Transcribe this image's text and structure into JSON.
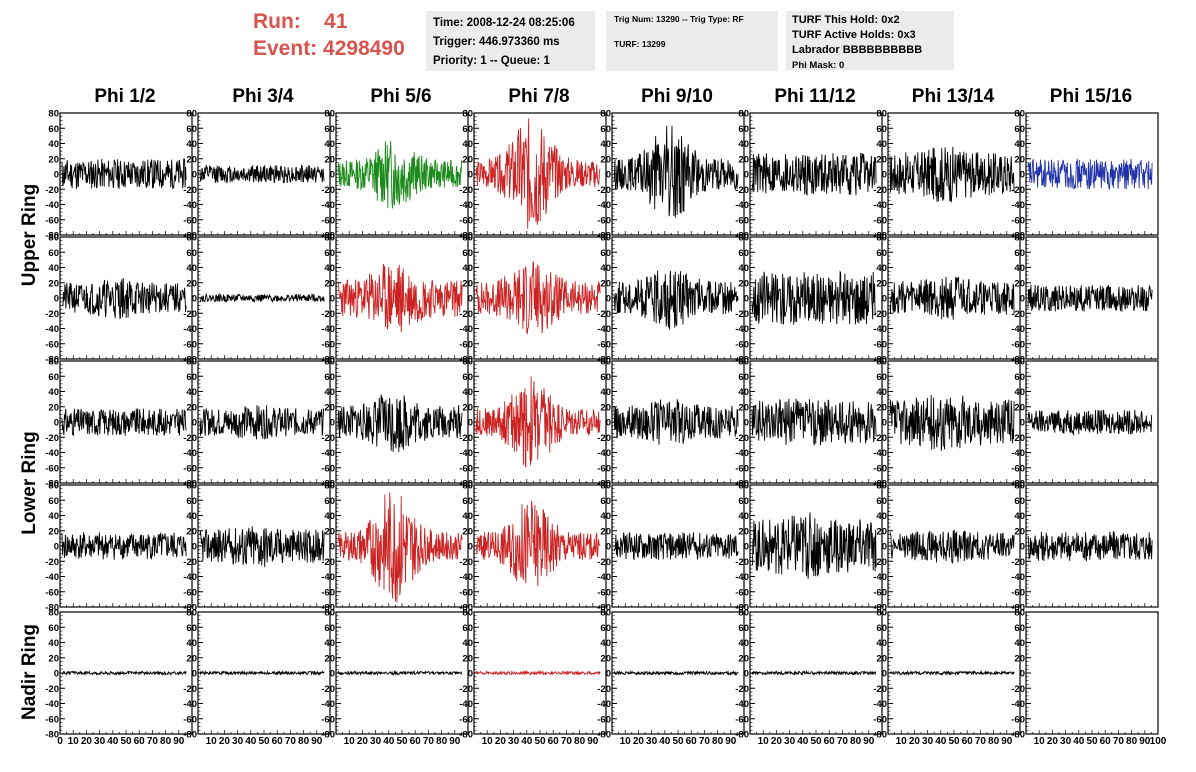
{
  "header": {
    "run_label": "Run:",
    "run_value": "41",
    "event_label": "Event:",
    "event_value": "4298490",
    "time": "Time: 2008-12-24 08:25:06",
    "trigger": "Trigger: 446.973360 ms",
    "priority": "Priority: 1 -- Queue: 1",
    "trig_num": "Trig Num: 13290 -- Trig Type: RF",
    "turf": "TURF: 13299",
    "turf_this_hold": "TURF This Hold: 0x2",
    "turf_active_holds": "TURF Active Holds: 0x3",
    "labrador": "Labrador BBBBBBBBBB",
    "phi_mask": "Phi Mask: 0"
  },
  "chart_data": {
    "type": "line",
    "columns": [
      "Phi 1/2",
      "Phi 3/4",
      "Phi 5/6",
      "Phi 7/8",
      "Phi 9/10",
      "Phi 11/12",
      "Phi 13/14",
      "Phi 15/16"
    ],
    "row_groups": [
      {
        "label": "Upper Ring",
        "rows": [
          0,
          1
        ]
      },
      {
        "label": "Lower Ring",
        "rows": [
          2,
          3
        ]
      },
      {
        "label": "Nadir Ring",
        "rows": [
          4
        ]
      }
    ],
    "ylim": [
      -80,
      80
    ],
    "yticks": [
      "80",
      "60",
      "40",
      "20",
      "0",
      "-20",
      "-40",
      "-60",
      "-80"
    ],
    "xlim": [
      0,
      100
    ],
    "xticks_first": [
      "0",
      "10",
      "20",
      "30",
      "40",
      "50",
      "60",
      "70",
      "80",
      "90"
    ],
    "xticks_mid": [
      "10",
      "20",
      "30",
      "40",
      "50",
      "60",
      "70",
      "80",
      "90"
    ],
    "xticks_last": [
      "10",
      "20",
      "30",
      "40",
      "50",
      "60",
      "70",
      "80",
      "90",
      "100"
    ],
    "colors": {
      "default": "#000000",
      "green": "#1a8a1a",
      "red": "#cc2222",
      "blue": "#2233aa"
    },
    "traces": [
      [
        {
          "color": "default",
          "amp": 20,
          "burst": 0,
          "seed": 11,
          "length": 100
        },
        {
          "color": "default",
          "amp": 12,
          "burst": 0,
          "seed": 12,
          "length": 100
        },
        {
          "color": "green",
          "amp": 18,
          "burst": 30,
          "seed": 13,
          "length": 100
        },
        {
          "color": "red",
          "amp": 18,
          "burst": 60,
          "seed": 14,
          "length": 100
        },
        {
          "color": "default",
          "amp": 20,
          "burst": 45,
          "seed": 15,
          "length": 100
        },
        {
          "color": "default",
          "amp": 28,
          "burst": 0,
          "seed": 16,
          "length": 100
        },
        {
          "color": "default",
          "amp": 28,
          "burst": 10,
          "seed": 17,
          "length": 100
        },
        {
          "color": "blue",
          "amp": 20,
          "burst": 0,
          "seed": 18,
          "length": 100
        }
      ],
      [
        {
          "color": "default",
          "amp": 20,
          "burst": 8,
          "seed": 21,
          "length": 100
        },
        {
          "color": "default",
          "amp": 5,
          "burst": 0,
          "seed": 22,
          "length": 100
        },
        {
          "color": "red",
          "amp": 25,
          "burst": 25,
          "seed": 23,
          "length": 100
        },
        {
          "color": "red",
          "amp": 22,
          "burst": 30,
          "seed": 24,
          "length": 100
        },
        {
          "color": "default",
          "amp": 22,
          "burst": 20,
          "seed": 25,
          "length": 100
        },
        {
          "color": "default",
          "amp": 35,
          "burst": 0,
          "seed": 26,
          "length": 100
        },
        {
          "color": "default",
          "amp": 22,
          "burst": 8,
          "seed": 27,
          "length": 100
        },
        {
          "color": "default",
          "amp": 18,
          "burst": 0,
          "seed": 28,
          "length": 100
        }
      ],
      [
        {
          "color": "default",
          "amp": 18,
          "burst": 0,
          "seed": 31,
          "length": 100
        },
        {
          "color": "default",
          "amp": 18,
          "burst": 5,
          "seed": 32,
          "length": 100
        },
        {
          "color": "default",
          "amp": 22,
          "burst": 20,
          "seed": 33,
          "length": 100
        },
        {
          "color": "red",
          "amp": 18,
          "burst": 45,
          "seed": 34,
          "length": 100
        },
        {
          "color": "default",
          "amp": 22,
          "burst": 10,
          "seed": 35,
          "length": 100
        },
        {
          "color": "default",
          "amp": 28,
          "burst": 5,
          "seed": 36,
          "length": 100
        },
        {
          "color": "default",
          "amp": 30,
          "burst": 10,
          "seed": 37,
          "length": 100
        },
        {
          "color": "default",
          "amp": 16,
          "burst": 0,
          "seed": 38,
          "length": 100
        }
      ],
      [
        {
          "color": "default",
          "amp": 18,
          "burst": 0,
          "seed": 41,
          "length": 100
        },
        {
          "color": "default",
          "amp": 22,
          "burst": 8,
          "seed": 42,
          "length": 100
        },
        {
          "color": "red",
          "amp": 18,
          "burst": 60,
          "seed": 43,
          "length": 100
        },
        {
          "color": "red",
          "amp": 18,
          "burst": 45,
          "seed": 44,
          "length": 100
        },
        {
          "color": "default",
          "amp": 18,
          "burst": 0,
          "seed": 45,
          "length": 100
        },
        {
          "color": "default",
          "amp": 35,
          "burst": 10,
          "seed": 46,
          "length": 100
        },
        {
          "color": "default",
          "amp": 18,
          "burst": 5,
          "seed": 47,
          "length": 100
        },
        {
          "color": "default",
          "amp": 20,
          "burst": 0,
          "seed": 48,
          "length": 100
        }
      ],
      [
        {
          "color": "default",
          "amp": 2,
          "burst": 0,
          "seed": 51,
          "length": 100
        },
        {
          "color": "default",
          "amp": 2,
          "burst": 0,
          "seed": 52,
          "length": 100
        },
        {
          "color": "default",
          "amp": 2,
          "burst": 0,
          "seed": 53,
          "length": 100
        },
        {
          "color": "red",
          "amp": 2,
          "burst": 0,
          "seed": 54,
          "length": 100
        },
        {
          "color": "default",
          "amp": 2,
          "burst": 0,
          "seed": 55,
          "length": 100
        },
        {
          "color": "default",
          "amp": 2,
          "burst": 0,
          "seed": 56,
          "length": 100
        },
        {
          "color": "default",
          "amp": 2,
          "burst": 0,
          "seed": 57,
          "length": 100
        },
        {
          "color": "default",
          "amp": 0,
          "burst": 0,
          "seed": 58,
          "length": 0
        }
      ]
    ]
  }
}
